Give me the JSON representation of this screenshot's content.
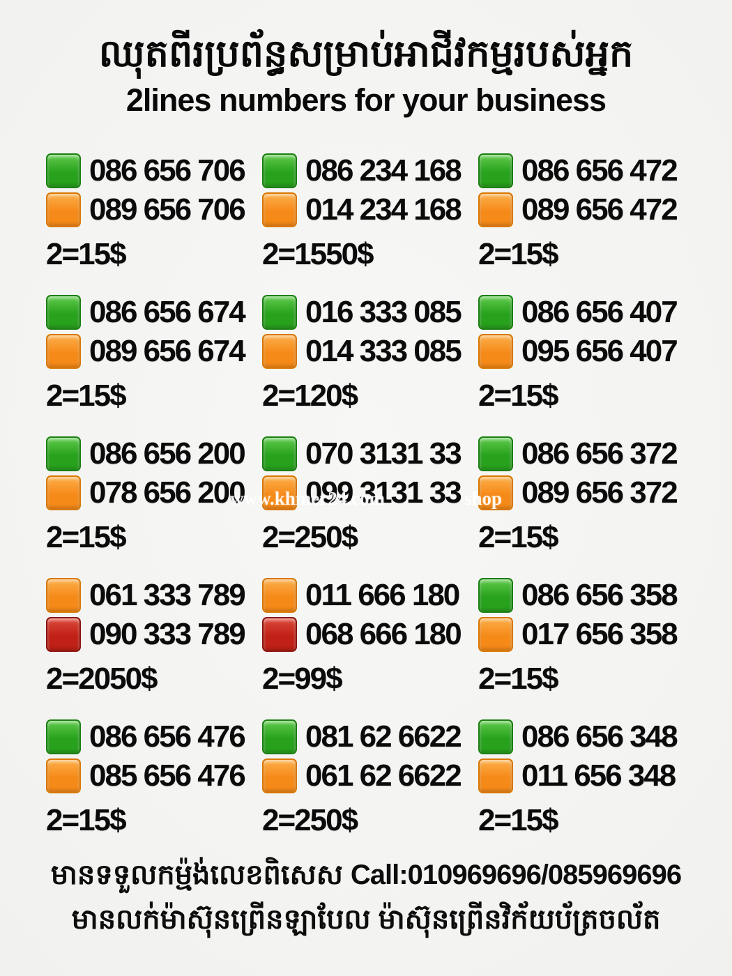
{
  "header": {
    "title_khmer": "ឈុតពីរប្រព័ន្ធសម្រាប់អាជីវកម្មរបស់អ្នក",
    "title_english": "2lines numbers for your business"
  },
  "colors": {
    "green": {
      "light": "#5fca4b",
      "base": "#28a21d",
      "border": "#1b7f12"
    },
    "orange": {
      "light": "#fcae4a",
      "base": "#f68a18",
      "border": "#d97700"
    },
    "red": {
      "light": "#dd4a3c",
      "base": "#c02016",
      "border": "#8a130b"
    }
  },
  "listings": [
    {
      "lines": [
        {
          "color": "green",
          "number": "086 656 706"
        },
        {
          "color": "orange",
          "number": "089 656 706"
        }
      ],
      "price": "2=15$"
    },
    {
      "lines": [
        {
          "color": "green",
          "number": "086 234 168"
        },
        {
          "color": "orange",
          "number": "014 234 168"
        }
      ],
      "price": "2=1550$"
    },
    {
      "lines": [
        {
          "color": "green",
          "number": "086 656 472"
        },
        {
          "color": "orange",
          "number": "089 656 472"
        }
      ],
      "price": "2=15$"
    },
    {
      "lines": [
        {
          "color": "green",
          "number": "086 656 674"
        },
        {
          "color": "orange",
          "number": "089 656 674"
        }
      ],
      "price": "2=15$"
    },
    {
      "lines": [
        {
          "color": "green",
          "number": "016 333 085"
        },
        {
          "color": "orange",
          "number": "014 333 085"
        }
      ],
      "price": "2=120$"
    },
    {
      "lines": [
        {
          "color": "green",
          "number": "086 656 407"
        },
        {
          "color": "orange",
          "number": "095 656 407"
        }
      ],
      "price": "2=15$"
    },
    {
      "lines": [
        {
          "color": "green",
          "number": "086 656 200"
        },
        {
          "color": "orange",
          "number": "078 656 200"
        }
      ],
      "price": "2=15$"
    },
    {
      "lines": [
        {
          "color": "green",
          "number": "070 3131 33"
        },
        {
          "color": "orange",
          "number": "099 3131 33"
        }
      ],
      "price": "2=250$"
    },
    {
      "lines": [
        {
          "color": "green",
          "number": "086 656 372"
        },
        {
          "color": "orange",
          "number": "089 656 372"
        }
      ],
      "price": "2=15$"
    },
    {
      "lines": [
        {
          "color": "orange",
          "number": "061 333 789"
        },
        {
          "color": "red",
          "number": "090 333 789"
        }
      ],
      "price": "2=2050$"
    },
    {
      "lines": [
        {
          "color": "orange",
          "number": "011 666 180"
        },
        {
          "color": "red",
          "number": "068 666 180"
        }
      ],
      "price": "2=99$"
    },
    {
      "lines": [
        {
          "color": "green",
          "number": "086 656 358"
        },
        {
          "color": "orange",
          "number": "017 656 358"
        }
      ],
      "price": "2=15$"
    },
    {
      "lines": [
        {
          "color": "green",
          "number": "086 656 476"
        },
        {
          "color": "orange",
          "number": "085 656 476"
        }
      ],
      "price": "2=15$"
    },
    {
      "lines": [
        {
          "color": "green",
          "number": "081 62 6622"
        },
        {
          "color": "orange",
          "number": "061 62 6622"
        }
      ],
      "price": "2=250$"
    },
    {
      "lines": [
        {
          "color": "green",
          "number": "086 656 348"
        },
        {
          "color": "orange",
          "number": "011 656 348"
        }
      ],
      "price": "2=15$"
    }
  ],
  "watermark": {
    "left": "www.khmer24.com",
    "right": "shop"
  },
  "footer": {
    "line1_khmer": "មានទទួលកម្ម៉ង់លេខពិសេស",
    "line1_call": "Call:010969696/085969696",
    "line2_khmer": "មានលក់ម៉ាស៊ុនព្រើនឡាបែល ម៉ាស៊ុនព្រើនវិក័យប័ត្រចល័ត"
  }
}
